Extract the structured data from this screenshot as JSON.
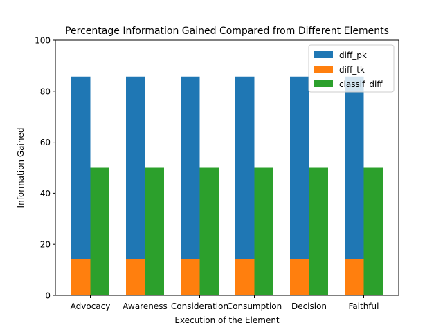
{
  "chart_data": {
    "type": "bar",
    "title": "Percentage Information Gained Compared from Different Elements",
    "xlabel": "Execution of the Element",
    "ylabel": "Information Gained",
    "ylim": [
      0,
      100
    ],
    "yticks": [
      0,
      20,
      40,
      60,
      80,
      100
    ],
    "categories": [
      "Advocacy",
      "Awareness",
      "Consideration",
      "Consumption",
      "Decision",
      "Faithful"
    ],
    "series": [
      {
        "name": "diff_pk",
        "color": "#1f77b4",
        "values": [
          85.7,
          85.7,
          85.7,
          85.7,
          85.7,
          85.7
        ],
        "group": 0
      },
      {
        "name": "diff_tk",
        "color": "#ff7f0e",
        "values": [
          14.3,
          14.3,
          14.3,
          14.3,
          14.3,
          14.3
        ],
        "group": 0
      },
      {
        "name": "classif_diff",
        "color": "#2ca02c",
        "values": [
          50,
          50,
          50,
          50,
          50,
          50
        ],
        "group": 1
      }
    ],
    "grid": false,
    "legend": "top-right"
  }
}
